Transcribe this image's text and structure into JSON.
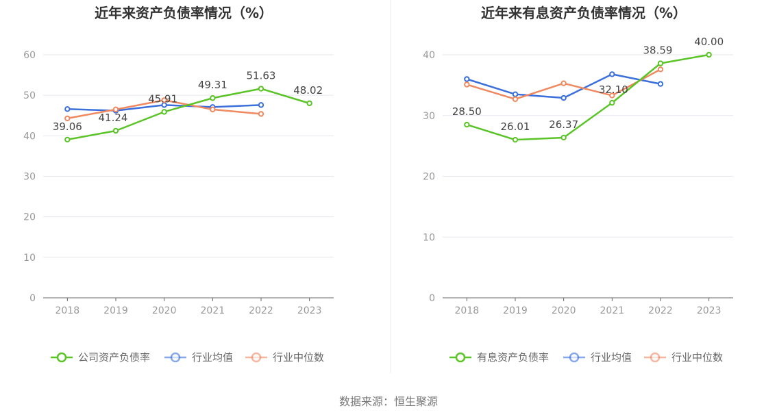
{
  "source": "数据来源：恒生聚源",
  "colors": {
    "company": "#5ac427",
    "avg": "#3a6fdc",
    "median": "#f08860",
    "grid": "#e6e6ee",
    "axis": "#666666"
  },
  "chart_data": [
    {
      "type": "line",
      "title": "近年来资产负债率情况（%）",
      "categories": [
        "2018",
        "2019",
        "2020",
        "2021",
        "2022",
        "2023"
      ],
      "ylim": [
        0,
        60
      ],
      "yticks": [
        0,
        10,
        20,
        30,
        40,
        50,
        60
      ],
      "grid": true,
      "legend_position": "bottom",
      "series": [
        {
          "name": "公司资产负债率",
          "key": "company",
          "values": [
            39.06,
            41.24,
            45.91,
            49.31,
            51.63,
            48.02
          ],
          "labels": [
            "39.06",
            "41.24",
            "45.91",
            "49.31",
            "51.63",
            "48.02"
          ]
        },
        {
          "name": "行业均值",
          "key": "avg",
          "values": [
            46.6,
            46.2,
            47.6,
            47.1,
            47.6,
            null
          ]
        },
        {
          "name": "行业中位数",
          "key": "median",
          "values": [
            44.3,
            46.5,
            48.8,
            46.5,
            45.4,
            null
          ]
        }
      ]
    },
    {
      "type": "line",
      "title": "近年来有息资产负债率情况（%）",
      "categories": [
        "2018",
        "2019",
        "2020",
        "2021",
        "2022",
        "2023"
      ],
      "ylim": [
        0,
        40
      ],
      "yticks": [
        0,
        10,
        20,
        30,
        40
      ],
      "grid": true,
      "legend_position": "bottom",
      "series": [
        {
          "name": "有息资产负债率",
          "key": "company",
          "values": [
            28.5,
            26.01,
            26.37,
            32.1,
            38.59,
            40.0
          ],
          "labels": [
            "28.50",
            "26.01",
            "26.37",
            "32.10",
            "38.59",
            "40.00"
          ]
        },
        {
          "name": "行业均值",
          "key": "avg",
          "values": [
            36.0,
            33.5,
            32.9,
            36.8,
            35.2,
            null
          ]
        },
        {
          "name": "行业中位数",
          "key": "median",
          "values": [
            35.1,
            32.7,
            35.3,
            33.3,
            37.6,
            null
          ]
        }
      ]
    }
  ]
}
